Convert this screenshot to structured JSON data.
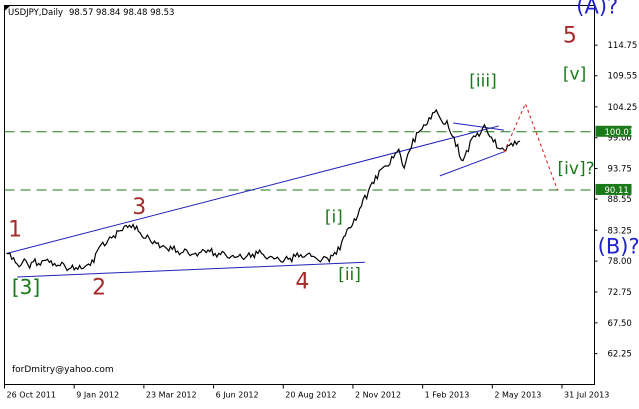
{
  "chart_data": {
    "type": "line",
    "header": {
      "symbol": "USDJPY,Daily",
      "ohlc": "98.57 98.84 98.48 98.53"
    },
    "watermark": "forDmitry@yahoo.com",
    "y_ticks": [
      "114.75",
      "109.55",
      "104.25",
      "99.00",
      "93.75",
      "88.55",
      "83.25",
      "78.00",
      "72.75",
      "67.50",
      "62.25"
    ],
    "x_ticks": [
      "26 Oct 2011",
      "9 Jan 2012",
      "23 Mar 2012",
      "6 Jun 2012",
      "20 Aug 2012",
      "2 Nov 2012",
      "1 Feb 2013",
      "2 May 2013",
      "31 Jul 2013"
    ],
    "ylim": [
      57.0,
      121.5
    ],
    "price_labels": [
      {
        "text": "100.01",
        "value": 100.01,
        "color": "#1a7a1a"
      },
      {
        "text": "90.11",
        "value": 90.11,
        "color": "#1a7a1a"
      }
    ],
    "hlines": [
      100.01,
      90.11
    ],
    "series": [
      {
        "values": [
          79.3,
          78.3,
          77.5,
          77.8,
          77.4,
          77.9,
          77.6,
          78.1,
          77.8,
          77.6,
          77.2,
          77.0,
          76.8,
          76.9,
          76.7,
          77.3,
          78.2,
          79.8,
          81.2,
          81.6,
          82.3,
          83.1,
          83.9,
          84.1,
          83.4,
          82.8,
          81.9,
          81.3,
          81.0,
          80.5,
          80.1,
          80.0,
          79.7,
          79.5,
          79.3,
          79.2,
          79.4,
          79.8,
          79.6,
          79.3,
          79.1,
          79.0,
          78.8,
          78.7,
          78.6,
          78.9,
          79.2,
          79.3,
          79.1,
          78.6,
          78.4,
          78.2,
          78.3,
          78.5,
          78.8,
          79.1,
          79.0,
          78.8,
          78.4,
          78.3,
          78.5,
          78.9,
          80.4,
          82.1,
          83.7,
          85.2,
          86.9,
          89.2,
          90.8,
          92.5,
          93.6,
          94.2,
          95.8,
          96.6,
          94.4,
          96.2,
          98.8,
          99.9,
          101.2,
          102.4,
          103.3,
          102.4,
          101.3,
          99.8,
          97.5,
          95.2,
          96.8,
          98.9,
          99.8,
          100.6,
          99.7,
          98.3,
          97.2,
          96.9,
          97.7,
          98.4
        ]
      }
    ],
    "trendlines": [
      {
        "x1": 0.0,
        "y1": 79.3,
        "x2": 92.0,
        "y2": 101.0
      },
      {
        "x1": 2.0,
        "y1": 75.3,
        "x2": 67.0,
        "y2": 77.8
      },
      {
        "x1": 83.5,
        "y1": 101.5,
        "x2": 93.0,
        "y2": 100.3
      },
      {
        "x1": 81.0,
        "y1": 92.5,
        "x2": 93.0,
        "y2": 96.6
      }
    ],
    "forecast": [
      {
        "x": 93.0,
        "y": 96.5
      },
      {
        "x": 97.0,
        "y": 104.8
      },
      {
        "x": 103.0,
        "y": 90.1
      }
    ],
    "wave_labels": [
      {
        "text": "1",
        "x": 0.3,
        "y": 82.2,
        "color": "#a52a2a",
        "size": 22
      },
      {
        "text": "[3]",
        "x": 1.0,
        "y": 72.4,
        "color": "#1a7a1a",
        "size": 20
      },
      {
        "text": "2",
        "x": 16.0,
        "y": 72.3,
        "color": "#a52a2a",
        "size": 22
      },
      {
        "text": "3",
        "x": 23.5,
        "y": 86.0,
        "color": "#a52a2a",
        "size": 22
      },
      {
        "text": "4",
        "x": 54.0,
        "y": 73.3,
        "color": "#a52a2a",
        "size": 22
      },
      {
        "text": "[i]",
        "x": 59.5,
        "y": 84.6,
        "color": "#1a7a1a",
        "size": 17
      },
      {
        "text": "[ii]",
        "x": 62.0,
        "y": 74.8,
        "color": "#1a7a1a",
        "size": 17
      },
      {
        "text": "[iii]",
        "x": 86.5,
        "y": 107.7,
        "color": "#1a7a1a",
        "size": 17
      },
      {
        "text": "[iv]?",
        "x": 103.0,
        "y": 92.8,
        "color": "#1a7a1a",
        "size": 17
      },
      {
        "text": "5",
        "x": 104.0,
        "y": 115.2,
        "color": "#a52a2a",
        "size": 22
      },
      {
        "text": "[v]",
        "x": 104.0,
        "y": 108.9,
        "color": "#1a7a1a",
        "size": 17
      },
      {
        "text": "(A)?",
        "x": 106.5,
        "y": 120.1,
        "color": "#2222cc",
        "size": 21
      },
      {
        "text": "(B)?",
        "x": 110.5,
        "y": 79.3,
        "color": "#2222cc",
        "size": 21
      }
    ]
  }
}
